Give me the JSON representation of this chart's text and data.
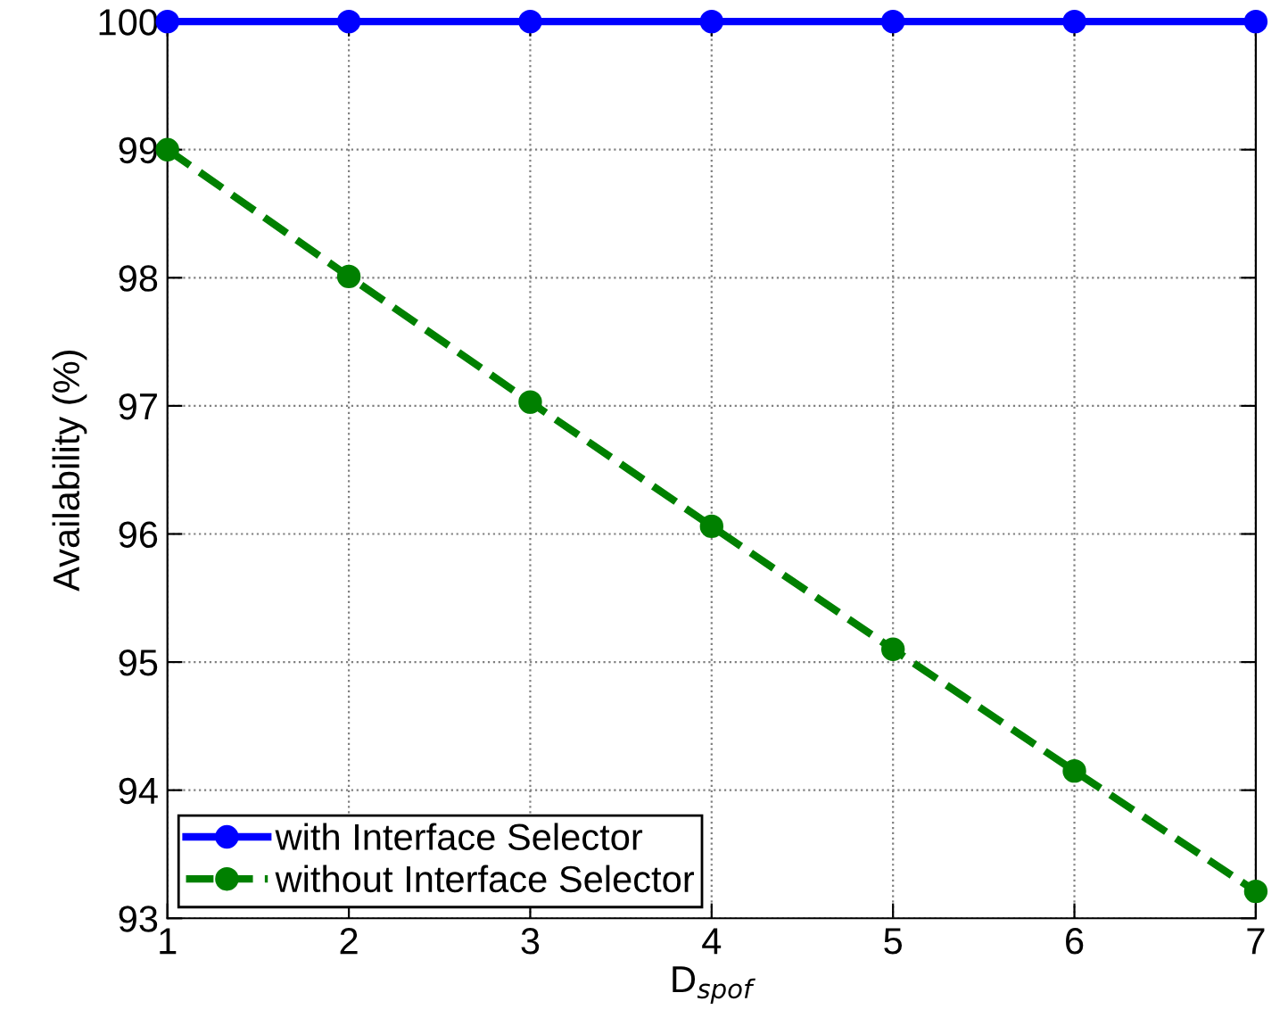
{
  "chart_data": {
    "type": "line",
    "xlabel": "D$_{spof}$",
    "ylabel": "Availability (%)",
    "x": [
      1,
      2,
      3,
      4,
      5,
      6,
      7
    ],
    "series": [
      {
        "name": "with Interface Selector",
        "color": "#0000ff",
        "values": [
          100,
          100,
          100,
          100,
          100,
          100,
          100
        ],
        "line_style": "solid"
      },
      {
        "name": "without Interface Selector",
        "color": "#008000",
        "values": [
          99,
          98.01,
          97.03,
          96.06,
          95.1,
          94.15,
          93.21
        ],
        "line_style": "dashed"
      }
    ],
    "xlim": [
      1,
      7
    ],
    "xticks": [
      1,
      2,
      3,
      4,
      5,
      6,
      7
    ],
    "ylim": [
      93,
      100
    ],
    "yticks": [
      93,
      94,
      95,
      96,
      97,
      98,
      99,
      100
    ],
    "grid": true,
    "legend": "bottom left",
    "marker": "circle"
  }
}
